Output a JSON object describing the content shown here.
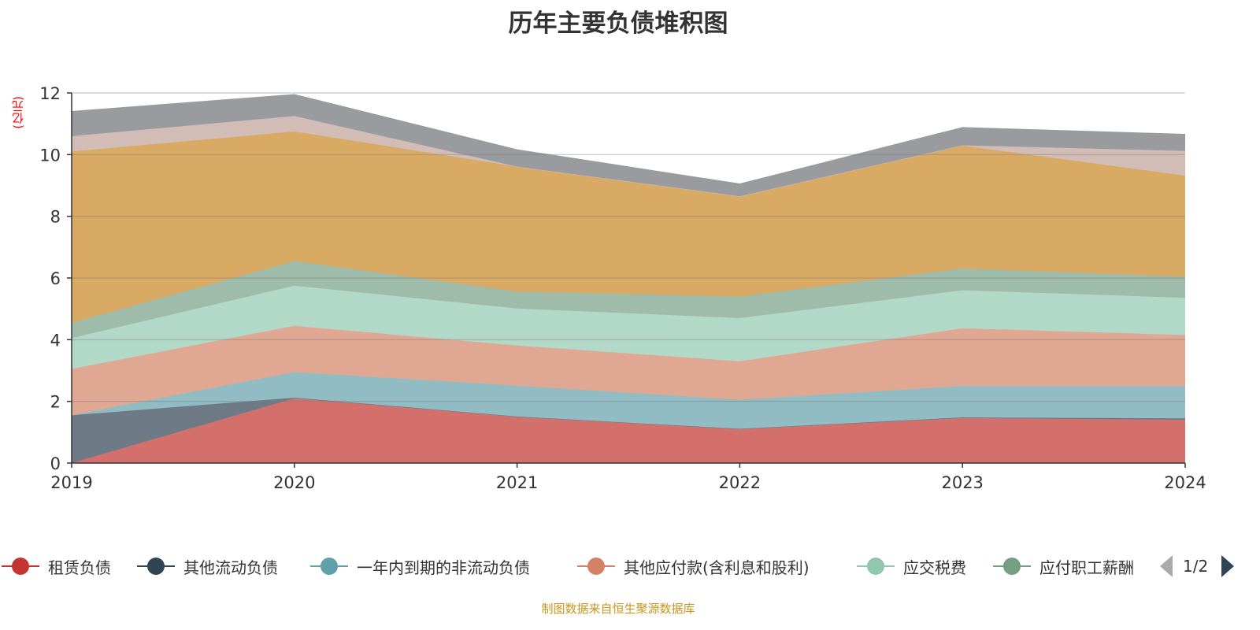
{
  "chart_data": {
    "type": "area",
    "stacked": true,
    "title": "历年主要负债堆积图",
    "ylabel": "(亿元)",
    "xlabel": "",
    "categories": [
      "2019",
      "2020",
      "2021",
      "2022",
      "2023",
      "2024"
    ],
    "ylim": [
      0,
      12
    ],
    "yticks": [
      "0",
      "2",
      "4",
      "6",
      "8",
      "10",
      "12"
    ],
    "grid": true,
    "legend_position": "bottom",
    "legend_page": "1/2",
    "series": [
      {
        "name": "租赁负债",
        "color": "#c23531",
        "fill": "#d4706c",
        "values": [
          0,
          2.1,
          1.5,
          1.1,
          1.46,
          1.4
        ]
      },
      {
        "name": "其他流动负债",
        "color": "#2f4554",
        "fill": "#6e7b86",
        "values": [
          1.55,
          0.02,
          0.01,
          0.01,
          0.02,
          0.05
        ]
      },
      {
        "name": "一年内到期的非流动负债",
        "color": "#61a0a8",
        "fill": "#91bcc3",
        "values": [
          0,
          0.83,
          1.0,
          0.94,
          1.02,
          1.05
        ]
      },
      {
        "name": "其他应付款(含利息和股利)",
        "color": "#d48265",
        "fill": "#e0a893",
        "values": [
          1.5,
          1.5,
          1.3,
          1.25,
          1.87,
          1.65
        ]
      },
      {
        "name": "应交税费",
        "color": "#91c7ae",
        "fill": "#b2d9c8",
        "values": [
          1.0,
          1.3,
          1.2,
          1.4,
          1.23,
          1.21
        ]
      },
      {
        "name": "应付职工薪酬",
        "color": "#749f83",
        "fill": "#9fbba9",
        "values": [
          0.5,
          0.8,
          0.55,
          0.7,
          0.71,
          0.68
        ]
      },
      {
        "name": null,
        "color": "#ca8622",
        "fill": "#d9aa63",
        "values": [
          5.55,
          4.2,
          4.05,
          3.25,
          3.98,
          3.28
        ]
      },
      {
        "name": null,
        "color": "#bda29a",
        "fill": "#d1bcb6",
        "values": [
          0.5,
          0.5,
          0,
          0,
          0.01,
          0.8
        ]
      },
      {
        "name": null,
        "color": "#6e7074",
        "fill": "#9a9b9f",
        "values": [
          0.8,
          0.7,
          0.55,
          0.4,
          0.58,
          0.54
        ]
      }
    ],
    "legend_visible": [
      "租赁负债",
      "其他流动负债",
      "一年内到期的非流动负债",
      "其他应付款(含利息和股利)",
      "应交税费",
      "应付职工薪酬"
    ]
  },
  "footer": "制图数据来自恒生聚源数据库"
}
